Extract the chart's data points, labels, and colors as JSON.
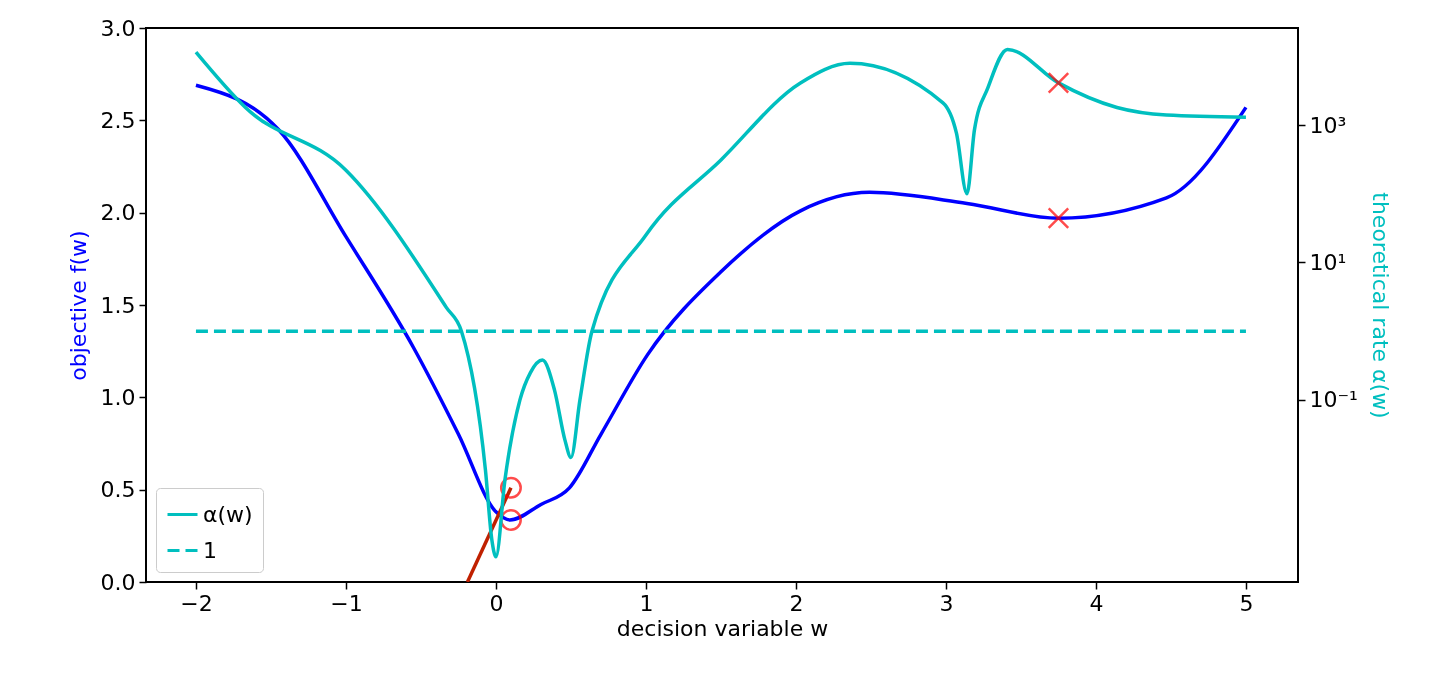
{
  "chart_data": {
    "type": "line",
    "xlabel": "decision variable w",
    "ylabel": "objective f(w)",
    "y2label": "theoretical rate α(w)",
    "xlim": [
      -2.333,
      5.347
    ],
    "xticks": [
      {
        "value": -2,
        "label": "−2"
      },
      {
        "value": -1,
        "label": "−1"
      },
      0,
      1,
      2,
      3,
      4,
      5
    ],
    "ylim": [
      0,
      3
    ],
    "yticks": [
      {
        "value": 0,
        "label": "0.0"
      },
      0.5,
      {
        "value": 1,
        "label": "1.0"
      },
      1.5,
      {
        "value": 2,
        "label": "2.0"
      },
      2.5,
      {
        "value": 3,
        "label": "3.0"
      }
    ],
    "y2lim": [
      0.000224,
      25800
    ],
    "y2ticks": [
      {
        "value": 0.1,
        "label": "10⁻¹"
      },
      {
        "value": 10,
        "label": "10¹"
      },
      {
        "value": 1000,
        "label": "10³"
      }
    ],
    "log": "y2",
    "grid": false,
    "legend": "bottom left",
    "series": [
      {
        "color": "#0000ff",
        "line_style": "solid",
        "x": [
          -2,
          -1.45,
          -1,
          -0.55,
          -0.25,
          0,
          0.093,
          0.3,
          0.49,
          0.7,
          1.01,
          1.5,
          2.03,
          2.49,
          3.14,
          3.75,
          4.47,
          5
        ],
        "values": [
          2.69,
          2.45,
          1.87,
          1.27,
          0.8,
          0.38,
          0.336,
          0.42,
          0.51,
          0.8,
          1.23,
          1.68,
          2.01,
          2.11,
          2.05,
          1.97,
          2.08,
          2.57
        ]
      },
      {
        "name": "α(w)",
        "axis": "y2",
        "color": "#00bfbf",
        "line_style": "solid",
        "x": [
          -2,
          -1.67,
          -1,
          -0.33,
          -0.23,
          -0.07,
          -0.027,
          0,
          0.06,
          0.16,
          0.23,
          0.31,
          0.39,
          0.46,
          0.5,
          0.56,
          0.64,
          1,
          1.5,
          2.03,
          2.36,
          2.98,
          3.07,
          3.14,
          3.19,
          3.28,
          3.41,
          3.75,
          4.14,
          4.47,
          5
        ],
        "values": [
          11500,
          1800,
          220,
          2.2,
          1,
          0.0095,
          0.00091,
          0.00052,
          0.0069,
          0.1,
          0.25,
          0.38,
          0.14,
          0.026,
          0.0145,
          0.1,
          1,
          25,
          310,
          4100,
          7900,
          2100,
          760,
          100,
          850,
          3500,
          12600,
          4100,
          1800,
          1400,
          1300
        ]
      },
      {
        "name": "1",
        "axis": "y2",
        "color": "#00bfbf",
        "line_style": "dashed",
        "x": [
          -2,
          5
        ],
        "values": [
          1,
          1
        ]
      },
      {
        "color": "#c02000",
        "line_style": "solid",
        "x": [
          0.1,
          -0.19
        ],
        "values": [
          0.51,
          0
        ]
      },
      {
        "type": "scatter",
        "color": "#ff0000",
        "marker": "circle",
        "x": [
          0.1,
          0.1
        ],
        "values": [
          0.51,
          0.336
        ]
      },
      {
        "type": "scatter",
        "color": "#ff0000",
        "marker": "cross",
        "x": [
          3.75
        ],
        "values": [
          1.97
        ]
      },
      {
        "type": "scatter",
        "axis": "y2",
        "color": "#ff0000",
        "marker": "cross",
        "x": [
          3.75
        ],
        "values": [
          4100
        ]
      }
    ]
  }
}
